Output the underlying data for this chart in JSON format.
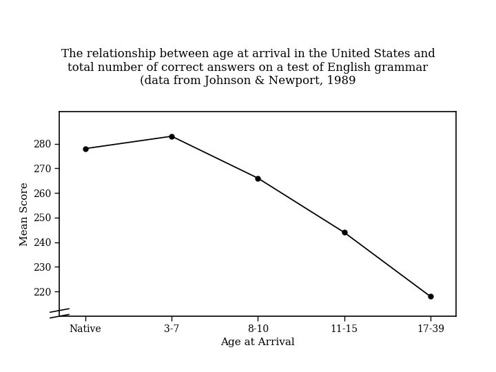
{
  "title": "The relationship between age at arrival in the United States and\ntotal number of correct answers on a test of English grammar\n(data from Johnson & Newport, 1989",
  "xlabel": "Age at Arrival",
  "ylabel": "Mean Score",
  "x_labels": [
    "Native",
    "3-7",
    "8-10",
    "11-15",
    "17-39"
  ],
  "y_values": [
    278,
    283,
    266,
    244,
    218
  ],
  "ylim": [
    210,
    293
  ],
  "yticks": [
    220,
    230,
    240,
    250,
    260,
    270,
    280
  ],
  "line_color": "#000000",
  "marker": "o",
  "marker_size": 5,
  "marker_facecolor": "#000000",
  "bg_color": "#ffffff",
  "title_fontsize": 12,
  "axis_label_fontsize": 11,
  "tick_fontsize": 10
}
